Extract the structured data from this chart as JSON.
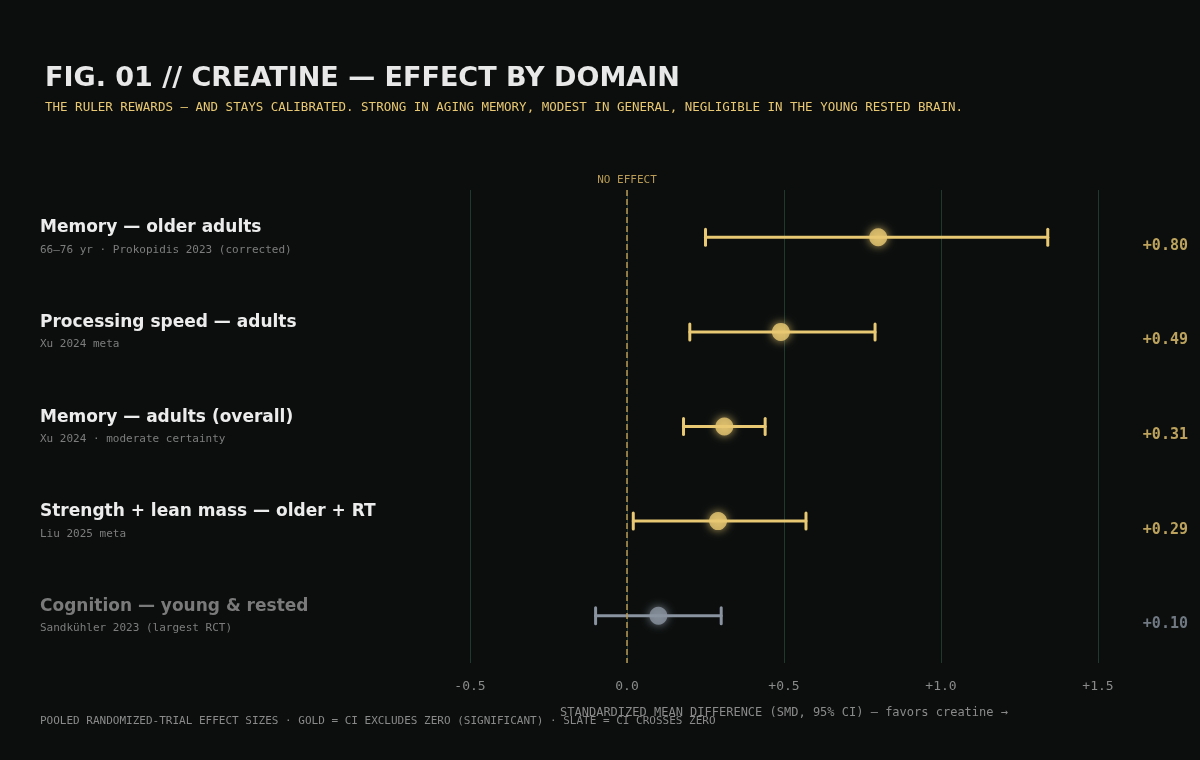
{
  "chart_data": {
    "type": "scatter",
    "title": "FIG. 01 // CREATINE — EFFECT BY DOMAIN",
    "subtitle": "THE RULER REWARDS — AND STAYS CALIBRATED. STRONG IN AGING MEMORY, MODEST IN GENERAL, NEGLIGIBLE IN THE YOUNG RESTED BRAIN.",
    "xlabel": "STANDARDIZED MEAN DIFFERENCE (SMD, 95% CI) — favors creatine →",
    "annotations": [
      "POOLED RANDOMIZED-TRIAL EFFECT SIZES · GOLD = CI EXCLUDES ZERO (SIGNIFICANT) · SLATE = CI CROSSES ZERO"
    ],
    "orientation": "horizontal",
    "categories": [
      "Memory — older adults\n66–76 yr · Prokopidis 2023 (corrected)",
      "Processing speed — adults\nXu 2024 meta",
      "Memory — adults (overall)\nXu 2024 · moderate certainty",
      "Strength + lean mass — older + RT\nLiu 2025 meta",
      "Cognition — young & rested\nSandkühler 2023 (largest RCT)"
    ],
    "values": [
      0.8,
      0.49,
      0.31,
      0.29,
      0.1
    ],
    "errors": [
      [
        0.25,
        1.34
      ],
      [
        0.2,
        0.79
      ],
      [
        0.18,
        0.44
      ],
      [
        0.02,
        0.57
      ],
      [
        -0.1,
        0.3
      ]
    ],
    "colors": [
      "#e8c872",
      "#e8c872",
      "#e8c872",
      "#e8c872",
      "#8a93a0"
    ],
    "value_labels": [
      "+0.80",
      "+0.49",
      "+0.31",
      "+0.29",
      "+0.10"
    ],
    "xlim": [
      -0.5,
      1.5
    ],
    "xticks": [
      {
        "value": -0.5,
        "label": "-0.5"
      },
      {
        "value": 0,
        "label": "0.0"
      },
      {
        "value": 0.5,
        "label": "+0.5"
      },
      {
        "value": 1,
        "label": "+1.0"
      },
      {
        "value": 1.5,
        "label": "+1.5"
      }
    ],
    "ref_lines": [
      {
        "axis": "x",
        "value": 0,
        "label": "NO EFFECT",
        "color": "#b89a55",
        "line_style": "dashed"
      }
    ],
    "grid": "x",
    "marker": "circle"
  }
}
